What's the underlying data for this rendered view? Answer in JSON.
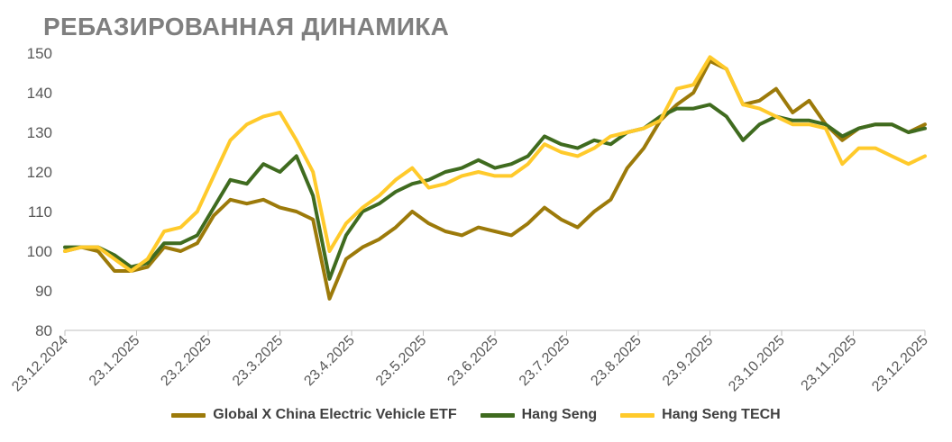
{
  "chart_data": {
    "type": "line",
    "title": "РЕБАЗИРОВАННАЯ ДИНАМИКА",
    "xlabel": "",
    "ylabel": "",
    "ylim": [
      80,
      150
    ],
    "yticks": [
      80,
      90,
      100,
      110,
      120,
      130,
      140,
      150
    ],
    "x_ticks": [
      "23.12.2024",
      "23.1.2025",
      "23.2.2025",
      "23.3.2025",
      "23.4.2025",
      "23.5.2025",
      "23.6.2025",
      "23.7.2025",
      "23.8.2025",
      "23.9.2025",
      "23.10.2025",
      "23.11.2025",
      "23.12.2025"
    ],
    "x": [
      "23.12.2024",
      "30.12.2024",
      "6.1.2025",
      "13.1.2025",
      "20.1.2025",
      "27.1.2025",
      "3.2.2025",
      "10.2.2025",
      "17.2.2025",
      "24.2.2025",
      "3.3.2025",
      "10.3.2025",
      "17.3.2025",
      "24.3.2025",
      "31.3.2025",
      "7.4.2025",
      "14.4.2025",
      "21.4.2025",
      "28.4.2025",
      "5.5.2025",
      "12.5.2025",
      "19.5.2025",
      "26.5.2025",
      "2.6.2025",
      "9.6.2025",
      "16.6.2025",
      "23.6.2025",
      "30.6.2025",
      "7.7.2025",
      "14.7.2025",
      "21.7.2025",
      "28.7.2025",
      "4.8.2025",
      "11.8.2025",
      "18.8.2025",
      "25.8.2025",
      "1.9.2025",
      "8.9.2025",
      "15.9.2025",
      "22.9.2025",
      "29.9.2025",
      "6.10.2025",
      "13.10.2025",
      "20.10.2025",
      "27.10.2025",
      "3.11.2025",
      "10.11.2025",
      "17.11.2025",
      "24.11.2025",
      "1.12.2025",
      "8.12.2025",
      "15.12.2025",
      "23.12.2025"
    ],
    "series": [
      {
        "name": "Global X China Electric Vehicle ETF",
        "color": "#9c7a0a",
        "values": [
          100,
          101,
          100,
          95,
          95,
          96,
          101,
          100,
          102,
          109,
          113,
          112,
          113,
          111,
          110,
          108,
          88,
          98,
          101,
          103,
          106,
          110,
          107,
          105,
          104,
          106,
          105,
          104,
          107,
          111,
          108,
          106,
          110,
          113,
          121,
          126,
          133,
          137,
          140,
          148,
          146,
          137,
          138,
          141,
          135,
          138,
          132,
          128,
          131,
          132,
          132,
          130,
          132
        ]
      },
      {
        "name": "Hang Seng",
        "color": "#3f6b1f",
        "values": [
          101,
          101,
          101,
          99,
          96,
          97,
          102,
          102,
          104,
          111,
          118,
          117,
          122,
          120,
          124,
          114,
          93,
          104,
          110,
          112,
          115,
          117,
          118,
          120,
          121,
          123,
          121,
          122,
          124,
          129,
          127,
          126,
          128,
          127,
          130,
          131,
          134,
          136,
          136,
          137,
          134,
          128,
          132,
          134,
          133,
          133,
          132,
          129,
          131,
          132,
          132,
          130,
          131
        ]
      },
      {
        "name": "Hang Seng TECH",
        "color": "#ffca2b",
        "values": [
          100,
          101,
          101,
          98,
          95,
          98,
          105,
          106,
          110,
          119,
          128,
          132,
          134,
          135,
          128,
          120,
          100,
          107,
          111,
          114,
          118,
          121,
          116,
          117,
          119,
          120,
          119,
          119,
          122,
          127,
          125,
          124,
          126,
          129,
          130,
          131,
          133,
          141,
          142,
          149,
          146,
          137,
          136,
          134,
          132,
          132,
          131,
          122,
          126,
          126,
          124,
          122,
          124
        ]
      }
    ]
  }
}
